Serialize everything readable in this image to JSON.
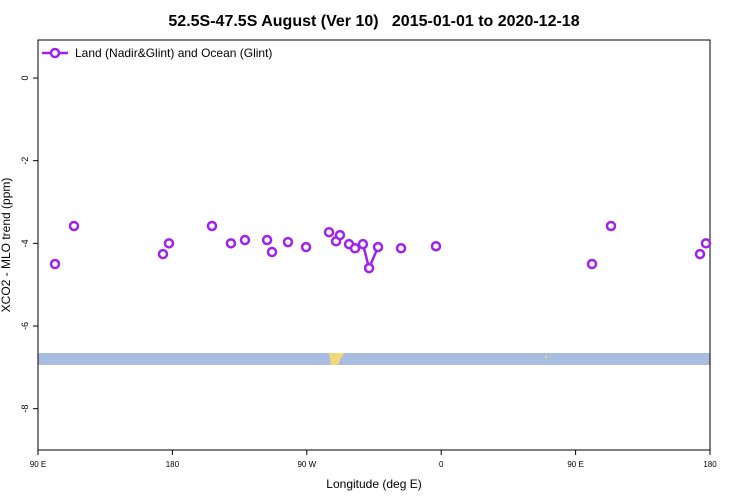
{
  "chart_data": {
    "type": "line",
    "title": "52.5S-47.5S August (Ver 10)   2015-01-01 to 2020-12-18",
    "x_label": "Longitude (deg E)",
    "y_label": "XCO2 - MLO trend (ppm)",
    "x": [
      101.4,
      null,
      114.1,
      null,
      173.7,
      null,
      177.7,
      null,
      206.5,
      null,
      219.2,
      null,
      228.6,
      null,
      243.4,
      null,
      246.7,
      null,
      257.4,
      null,
      269.5,
      null,
      284.9,
      null,
      289.6,
      null,
      292.2,
      null,
      298.3,
      null,
      302.3,
      null,
      307.6,
      311.7,
      317.7,
      null,
      333.1,
      null,
      356.5,
      null,
      461.0,
      null,
      473.7,
      null,
      533.3,
      null,
      537.3
    ],
    "series": [
      {
        "name": "Land (Nadir&Glint) and Ocean (Glint)",
        "color": "#a020f0",
        "values": [
          -4.5,
          null,
          -3.58,
          null,
          -4.26,
          null,
          -4.0,
          null,
          -3.58,
          null,
          -4.0,
          null,
          -3.92,
          null,
          -3.92,
          null,
          -4.21,
          null,
          -3.97,
          null,
          -4.09,
          null,
          -3.73,
          null,
          -3.95,
          null,
          -3.8,
          null,
          -4.02,
          null,
          -4.12,
          null,
          -4.02,
          -4.6,
          -4.09,
          null,
          -4.12,
          null,
          -4.07,
          null,
          -4.5,
          null,
          -3.58,
          null,
          -4.26,
          null,
          -4.0
        ]
      }
    ],
    "xlim": [
      90,
      540
    ],
    "xticks": [
      {
        "value": 90,
        "label": "90 E"
      },
      {
        "value": 180,
        "label": "180"
      },
      {
        "value": 270,
        "label": "90 W"
      },
      {
        "value": 360,
        "label": "0"
      },
      {
        "value": 450,
        "label": "90 E"
      },
      {
        "value": 540,
        "label": "180"
      }
    ],
    "ylim": [
      -9,
      0.92
    ],
    "yticks": [
      0,
      -2,
      -4,
      -6,
      -8
    ],
    "legend": "topleft"
  }
}
